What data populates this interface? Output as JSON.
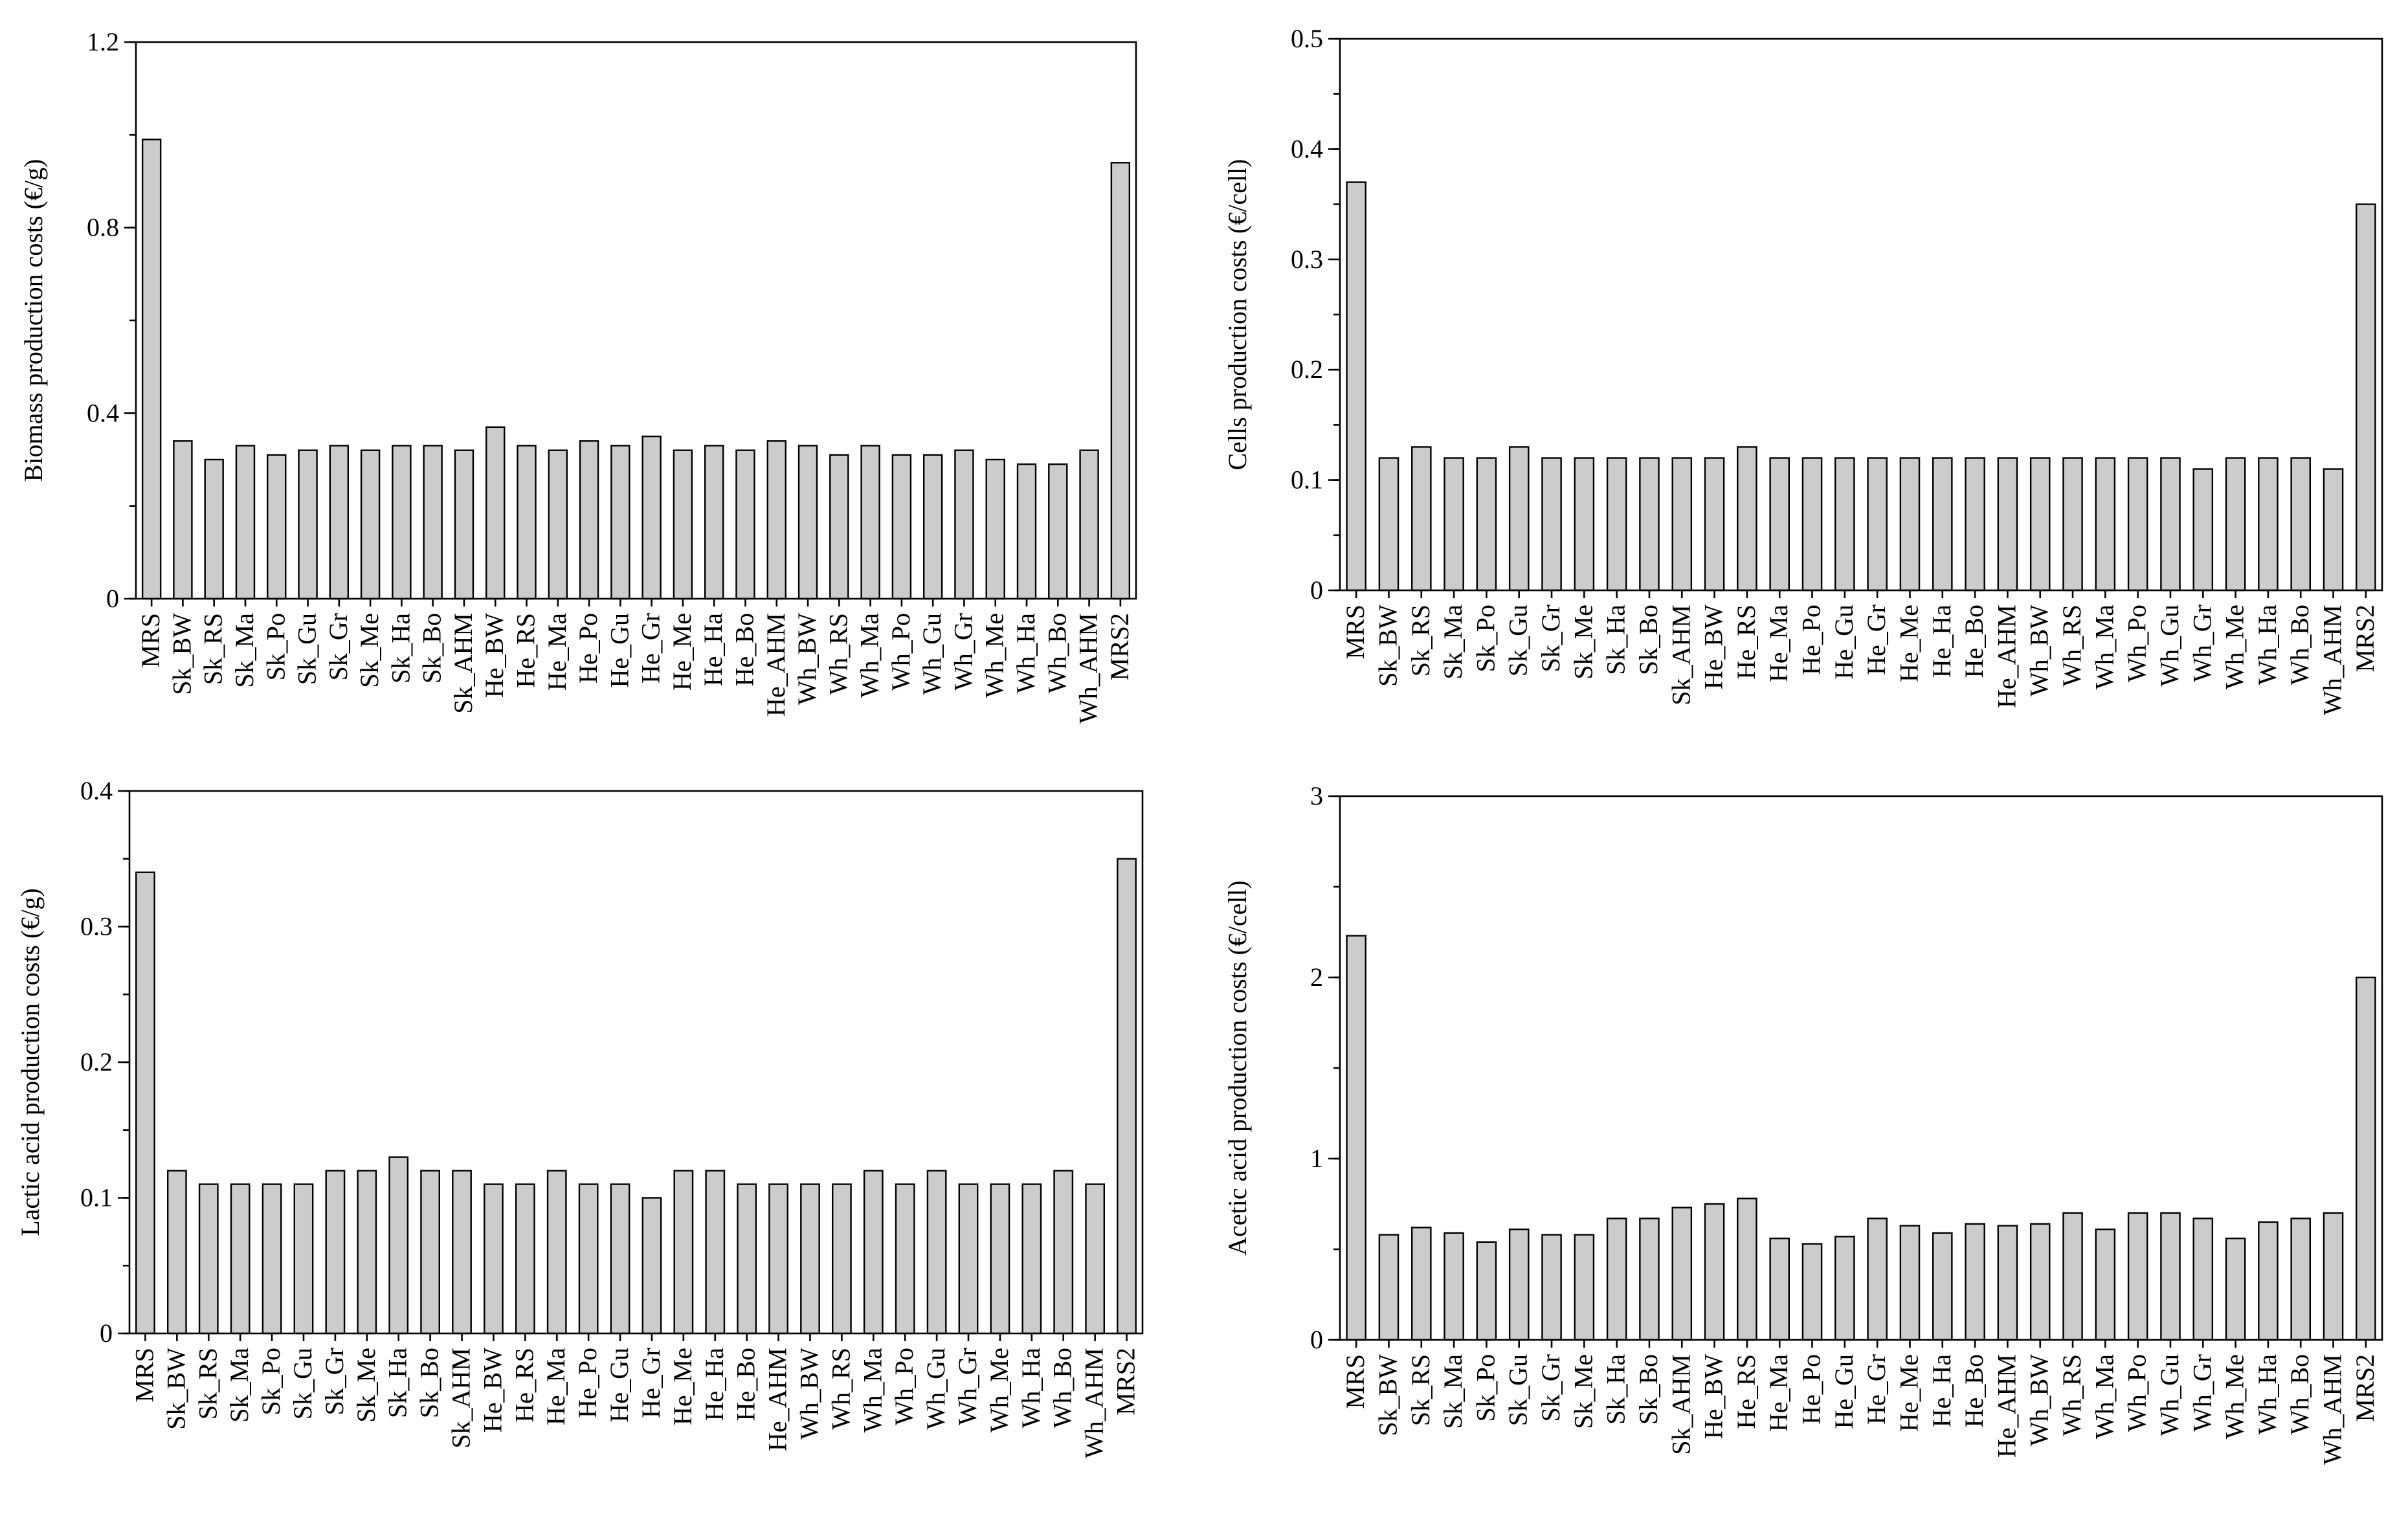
{
  "chart_data": [
    {
      "type": "bar",
      "ylabel": "Biomass production costs (€/g)",
      "ylim": [
        0,
        1.2
      ],
      "yticks": [
        "0",
        "0.4",
        "0.8",
        "1.2"
      ],
      "ytick_values": [
        0,
        0.4,
        0.8,
        1.2
      ],
      "minor_step": 0.2,
      "categories": [
        "MRS",
        "Sk_BW",
        "Sk_RS",
        "Sk_Ma",
        "Sk_Po",
        "Sk_Gu",
        "Sk_Gr",
        "Sk_Me",
        "Sk_Ha",
        "Sk_Bo",
        "Sk_AHM",
        "He_BW",
        "He_RS",
        "He_Ma",
        "He_Po",
        "He_Gu",
        "He_Gr",
        "He_Me",
        "He_Ha",
        "He_Bo",
        "He_AHM",
        "Wh_BW",
        "Wh_RS",
        "Wh_Ma",
        "Wh_Po",
        "Wh_Gu",
        "Wh_Gr",
        "Wh_Me",
        "Wh_Ha",
        "Wh_Bo",
        "Wh_AHM",
        "MRS2"
      ],
      "values": [
        0.99,
        0.34,
        0.3,
        0.33,
        0.31,
        0.32,
        0.33,
        0.32,
        0.33,
        0.33,
        0.32,
        0.37,
        0.33,
        0.32,
        0.34,
        0.33,
        0.35,
        0.32,
        0.33,
        0.32,
        0.34,
        0.33,
        0.31,
        0.33,
        0.31,
        0.31,
        0.32,
        0.3,
        0.29,
        0.29,
        0.32,
        0.94
      ]
    },
    {
      "type": "bar",
      "ylabel": "Cells production costs (€/cell)",
      "ylim": [
        0,
        0.5
      ],
      "yticks": [
        "0",
        "0.1",
        "0.2",
        "0.3",
        "0.4",
        "0.5"
      ],
      "ytick_values": [
        0,
        0.1,
        0.2,
        0.3,
        0.4,
        0.5
      ],
      "minor_step": 0.05,
      "categories": [
        "MRS",
        "Sk_BW",
        "Sk_RS",
        "Sk_Ma",
        "Sk_Po",
        "Sk_Gu",
        "Sk_Gr",
        "Sk_Me",
        "Sk_Ha",
        "Sk_Bo",
        "Sk_AHM",
        "He_BW",
        "He_RS",
        "He_Ma",
        "He_Po",
        "He_Gu",
        "He_Gr",
        "He_Me",
        "He_Ha",
        "He_Bo",
        "He_AHM",
        "Wh_BW",
        "Wh_RS",
        "Wh_Ma",
        "Wh_Po",
        "Wh_Gu",
        "Wh_Gr",
        "Wh_Me",
        "Wh_Ha",
        "Wh_Bo",
        "Wh_AHM",
        "MRS2"
      ],
      "values": [
        0.37,
        0.12,
        0.13,
        0.12,
        0.12,
        0.13,
        0.12,
        0.12,
        0.12,
        0.12,
        0.12,
        0.12,
        0.13,
        0.12,
        0.12,
        0.12,
        0.12,
        0.12,
        0.12,
        0.12,
        0.12,
        0.12,
        0.12,
        0.12,
        0.12,
        0.12,
        0.11,
        0.12,
        0.12,
        0.12,
        0.11,
        0.35
      ]
    },
    {
      "type": "bar",
      "ylabel": "Lactic acid production costs (€/g)",
      "ylim": [
        0,
        0.4
      ],
      "yticks": [
        "0",
        "0.1",
        "0.2",
        "0.3",
        "0.4"
      ],
      "ytick_values": [
        0,
        0.1,
        0.2,
        0.3,
        0.4
      ],
      "minor_step": 0.05,
      "categories": [
        "MRS",
        "Sk_BW",
        "Sk_RS",
        "Sk_Ma",
        "Sk_Po",
        "Sk_Gu",
        "Sk_Gr",
        "Sk_Me",
        "Sk_Ha",
        "Sk_Bo",
        "Sk_AHM",
        "He_BW",
        "He_RS",
        "He_Ma",
        "He_Po",
        "He_Gu",
        "He_Gr",
        "He_Me",
        "He_Ha",
        "He_Bo",
        "He_AHM",
        "Wh_BW",
        "Wh_RS",
        "Wh_Ma",
        "Wh_Po",
        "Wh_Gu",
        "Wh_Gr",
        "Wh_Me",
        "Wh_Ha",
        "Wh_Bo",
        "Wh_AHM",
        "MRS2"
      ],
      "values": [
        0.34,
        0.12,
        0.11,
        0.11,
        0.11,
        0.11,
        0.12,
        0.12,
        0.13,
        0.12,
        0.12,
        0.11,
        0.11,
        0.12,
        0.11,
        0.11,
        0.1,
        0.12,
        0.12,
        0.11,
        0.11,
        0.11,
        0.11,
        0.12,
        0.11,
        0.12,
        0.11,
        0.11,
        0.11,
        0.12,
        0.11,
        0.35
      ]
    },
    {
      "type": "bar",
      "ylabel": "Acetic acid production costs (€/cell)",
      "ylim": [
        0,
        3
      ],
      "yticks": [
        "0",
        "1",
        "2",
        "3"
      ],
      "ytick_values": [
        0,
        1,
        2,
        3
      ],
      "minor_step": 0.5,
      "categories": [
        "MRS",
        "Sk_BW",
        "Sk_RS",
        "Sk_Ma",
        "Sk_Po",
        "Sk_Gu",
        "Sk_Gr",
        "Sk_Me",
        "Sk_Ha",
        "Sk_Bo",
        "Sk_AHM",
        "He_BW",
        "He_RS",
        "He_Ma",
        "He_Po",
        "He_Gu",
        "He_Gr",
        "He_Me",
        "He_Ha",
        "He_Bo",
        "He_AHM",
        "Wh_BW",
        "Wh_RS",
        "Wh_Ma",
        "Wh_Po",
        "Wh_Gu",
        "Wh_Gr",
        "Wh_Me",
        "Wh_Ha",
        "Wh_Bo",
        "Wh_AHM",
        "MRS2"
      ],
      "values": [
        2.23,
        0.58,
        0.62,
        0.59,
        0.54,
        0.61,
        0.58,
        0.58,
        0.67,
        0.67,
        0.73,
        0.75,
        0.78,
        0.56,
        0.53,
        0.57,
        0.67,
        0.63,
        0.59,
        0.64,
        0.63,
        0.64,
        0.7,
        0.61,
        0.7,
        0.7,
        0.67,
        0.56,
        0.65,
        0.67,
        0.7,
        2.0
      ]
    }
  ]
}
